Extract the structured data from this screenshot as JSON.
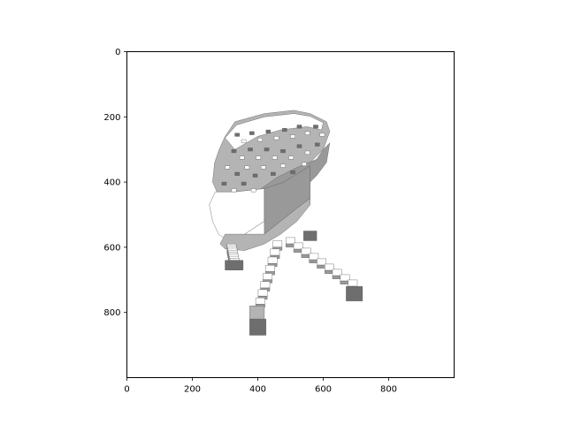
{
  "chart_data": {
    "type": "image",
    "title": "",
    "xlabel": "",
    "ylabel": "",
    "xlim": [
      0,
      1000
    ],
    "ylim": [
      1000,
      0
    ],
    "x_ticks": [
      0,
      200,
      400,
      600,
      800
    ],
    "y_ticks": [
      0,
      200,
      400,
      600,
      800
    ],
    "x_tick_labels": [
      "0",
      "200",
      "400",
      "600",
      "800"
    ],
    "y_tick_labels": [
      "0",
      "200",
      "400",
      "600",
      "800"
    ],
    "grid": false,
    "image_subject": "voxel-chair",
    "colors": {
      "voxel_top": "#ffffff",
      "voxel_light": "#b4b4b4",
      "voxel_mid": "#999999",
      "voxel_dark": "#6e6e6e",
      "edge": "#5a5a5a"
    }
  }
}
